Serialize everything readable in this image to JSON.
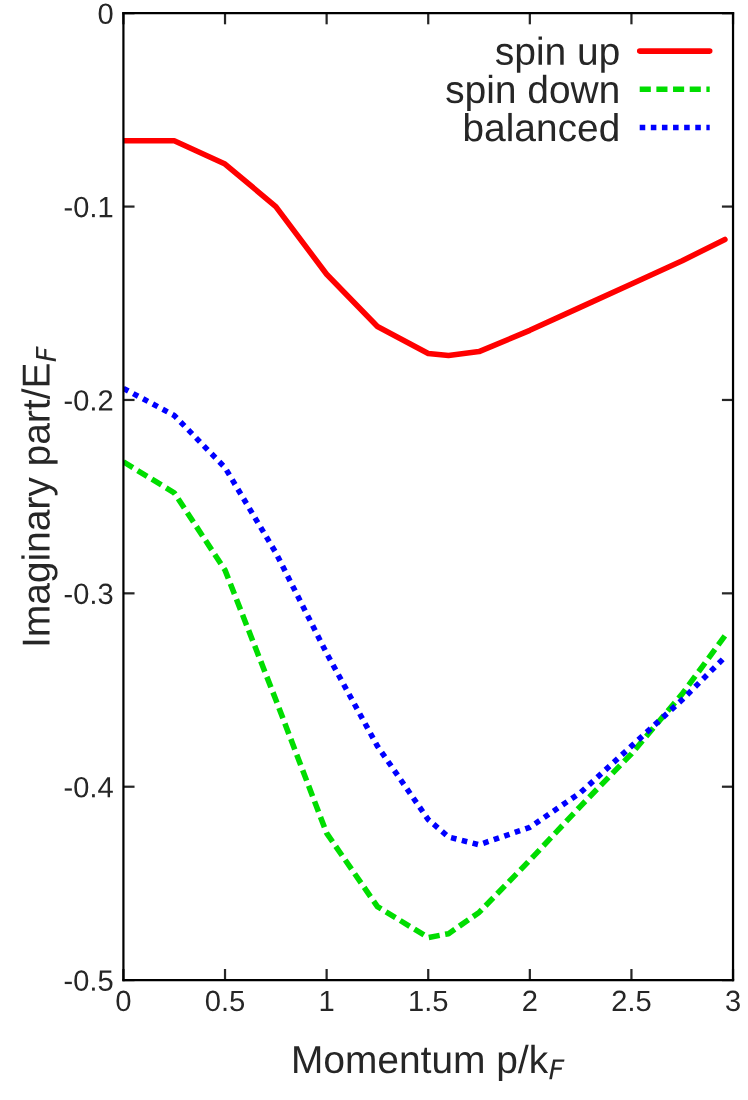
{
  "chart_data": {
    "type": "line",
    "xlabel": "Momentum p/k$_{F}$",
    "ylabel": "Imaginary part/E$_{F}$",
    "x": [
      0,
      0.25,
      0.5,
      0.75,
      1.0,
      1.25,
      1.5,
      1.6,
      1.75,
      2.0,
      2.25,
      2.5,
      2.75,
      2.96
    ],
    "series": [
      {
        "name": "spin up",
        "color": "#ff0000",
        "line_style": "solid",
        "values": [
          -0.066,
          -0.066,
          -0.078,
          -0.1,
          -0.135,
          -0.162,
          -0.176,
          -0.177,
          -0.175,
          -0.164,
          -0.152,
          -0.14,
          -0.128,
          -0.117
        ]
      },
      {
        "name": "spin down",
        "color": "#00dd00",
        "line_style": "dashed",
        "values": [
          -0.232,
          -0.248,
          -0.288,
          -0.355,
          -0.424,
          -0.462,
          -0.478,
          -0.476,
          -0.465,
          -0.438,
          -0.41,
          -0.383,
          -0.352,
          -0.322
        ]
      },
      {
        "name": "balanced",
        "color": "#0000ff",
        "line_style": "dotted",
        "values": [
          -0.194,
          -0.208,
          -0.235,
          -0.279,
          -0.331,
          -0.379,
          -0.417,
          -0.426,
          -0.43,
          -0.421,
          -0.403,
          -0.379,
          -0.355,
          -0.333
        ]
      }
    ],
    "xlim": [
      0,
      3
    ],
    "xticks": [
      0,
      0.5,
      1,
      1.5,
      2,
      2.5,
      3
    ],
    "ylim": [
      -0.5,
      0
    ],
    "yticks": [
      {
        "value": -0.5,
        "label": "-0.5"
      },
      {
        "value": -0.4,
        "label": "-0.4"
      },
      {
        "value": -0.3,
        "label": "-0.3"
      },
      {
        "value": -0.2,
        "label": "-0.2"
      },
      {
        "value": -0.1,
        "label": "-0.1"
      },
      0
    ],
    "grid": false,
    "legend": "top right"
  }
}
